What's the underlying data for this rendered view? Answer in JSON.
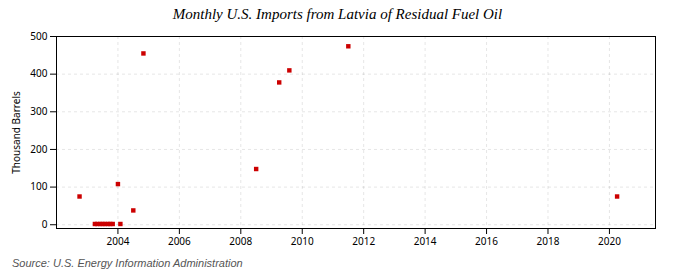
{
  "chart_data": {
    "type": "scatter",
    "title": "Monthly U.S. Imports from Latvia of Residual Fuel Oil",
    "ylabel": "Thousand Barrels",
    "annotations": [
      "Source: U.S. Energy Information Administration"
    ],
    "color": "#cc0000",
    "marker": "square",
    "grid": true,
    "xlim": [
      2002,
      2021.5
    ],
    "ylim": [
      -10,
      500
    ],
    "xticks": [
      2004,
      2006,
      2008,
      2010,
      2012,
      2014,
      2016,
      2018,
      2020
    ],
    "yticks": [
      0,
      100,
      200,
      300,
      400,
      500
    ],
    "x": [
      2002.75,
      2003.25,
      2003.33,
      2003.42,
      2003.5,
      2003.58,
      2003.67,
      2003.75,
      2003.83,
      2004.0,
      2004.08,
      2004.5,
      2004.83,
      2008.5,
      2009.25,
      2009.58,
      2011.5,
      2020.25
    ],
    "values": [
      75,
      2,
      2,
      2,
      2,
      2,
      2,
      2,
      2,
      108,
      2,
      38,
      455,
      148,
      378,
      410,
      474,
      75
    ]
  }
}
